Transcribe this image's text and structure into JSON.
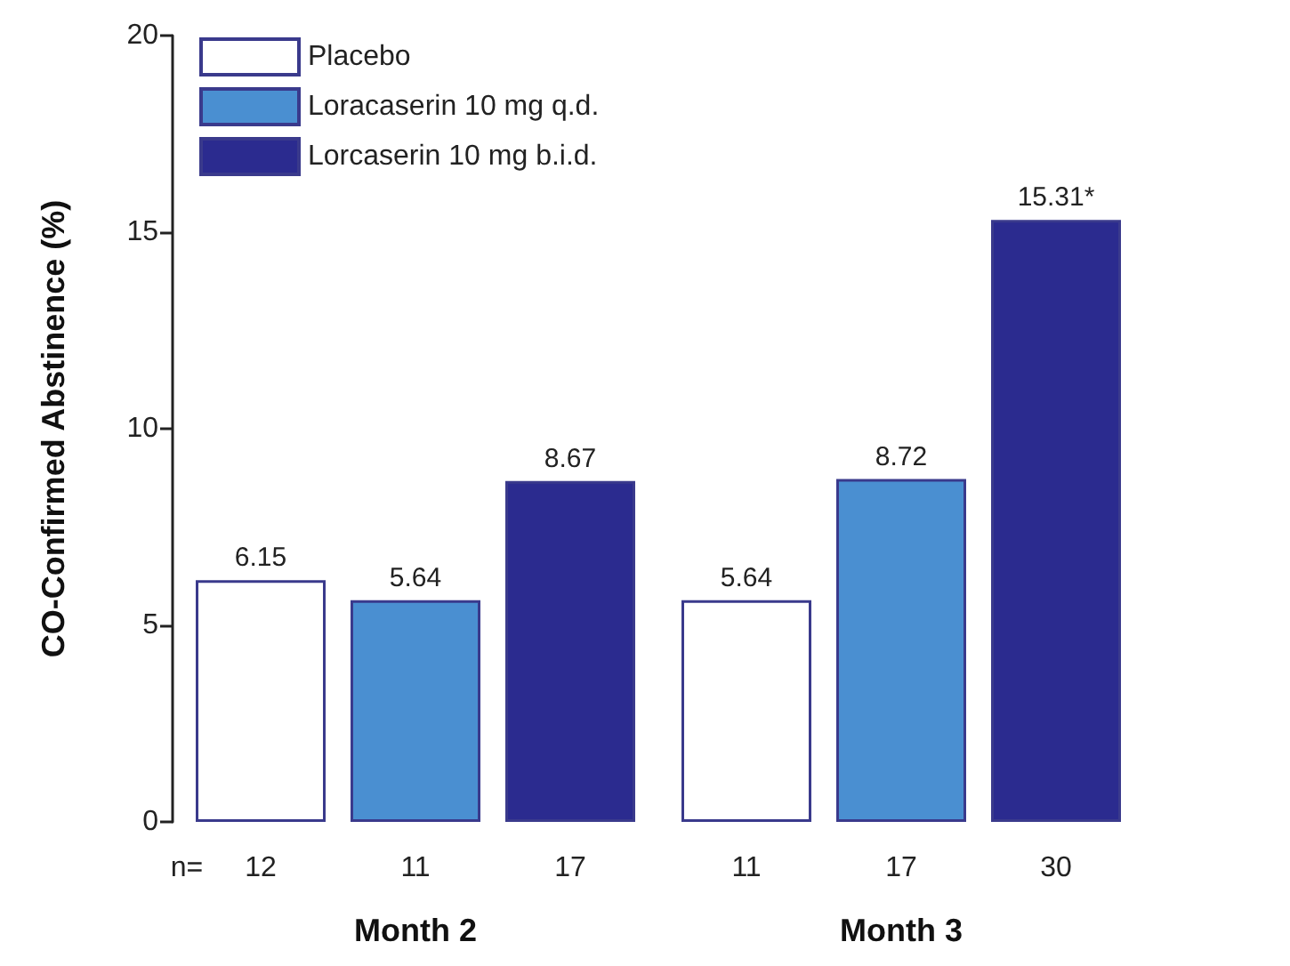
{
  "chart_data": {
    "type": "bar",
    "ylabel": "CO-Confirmed Abstinence (%)",
    "categories": [
      "Month 2",
      "Month 3"
    ],
    "series": [
      {
        "name": "Placebo",
        "color": "#ffffff",
        "values": [
          6.15,
          5.64
        ],
        "value_labels": [
          "6.15",
          "5.64"
        ]
      },
      {
        "name": "Loracaserin 10 mg q.d.",
        "color": "#4a8fd1",
        "values": [
          5.64,
          8.72
        ],
        "value_labels": [
          "5.64",
          "8.72"
        ]
      },
      {
        "name": "Lorcaserin 10 mg b.i.d.",
        "color": "#2b2b8f",
        "values": [
          8.67,
          15.31
        ],
        "value_labels": [
          "8.67",
          "15.31*"
        ]
      }
    ],
    "ylim": [
      0,
      20
    ],
    "yticks": [
      0,
      5,
      10,
      15,
      20
    ],
    "grid": false,
    "legend": "top left",
    "annotations": [
      "n=",
      "12",
      "11",
      "17",
      "11",
      "17",
      "30"
    ]
  }
}
